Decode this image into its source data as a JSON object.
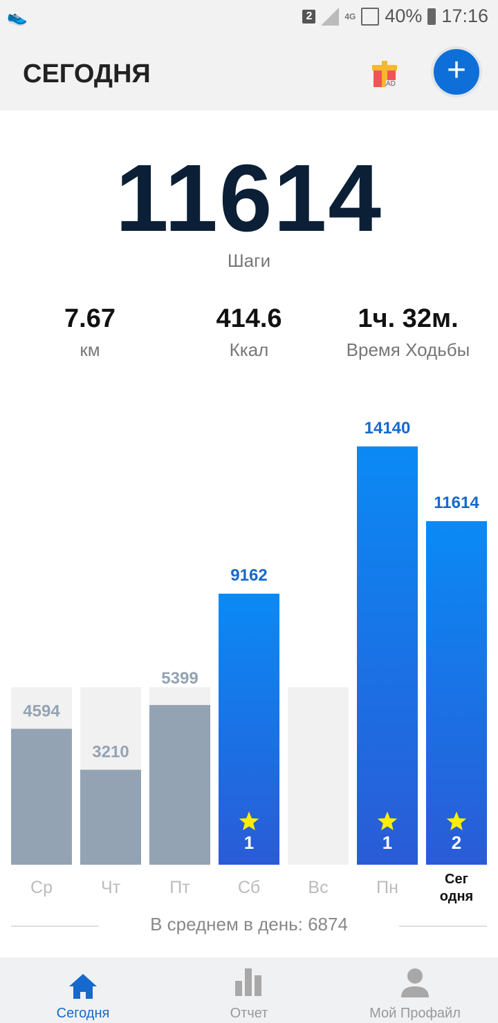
{
  "status_bar": {
    "sim": "2",
    "network": "4G",
    "battery": "40%",
    "time": "17:16"
  },
  "header": {
    "title": "СЕГОДНЯ",
    "gift_badge": "AD",
    "add_label": "+"
  },
  "summary": {
    "steps": "11614",
    "steps_label": "Шаги",
    "stats": [
      {
        "value": "7.67",
        "label": "км"
      },
      {
        "value": "414.6",
        "label": "Ккал"
      },
      {
        "value": "1ч. 32м.",
        "label": "Время Ходьбы"
      }
    ]
  },
  "chart_data": {
    "type": "bar",
    "goal": 6000,
    "categories": [
      "Ср",
      "Чт",
      "Пт",
      "Сб",
      "Вс",
      "Пн",
      "Сег одня"
    ],
    "values": [
      4594,
      3210,
      5399,
      9162,
      0,
      14140,
      11614
    ],
    "stars": [
      null,
      null,
      null,
      1,
      null,
      1,
      2
    ],
    "colors": {
      "below_goal": "#94a3b3",
      "above_goal_top": "#0a8af5",
      "above_goal_bottom": "#2a5bd6",
      "goal_bg": "#f1f1f1",
      "label_above": "#1769cc",
      "label_below": "#94a3b3",
      "star": "#ffee00"
    }
  },
  "average": "В среднем в день: 6874",
  "nav": [
    {
      "label": "Сегодня",
      "icon": "home-icon",
      "active": true
    },
    {
      "label": "Отчет",
      "icon": "bar-chart-icon"
    },
    {
      "label": "Мой Профайл",
      "icon": "person-icon"
    }
  ]
}
